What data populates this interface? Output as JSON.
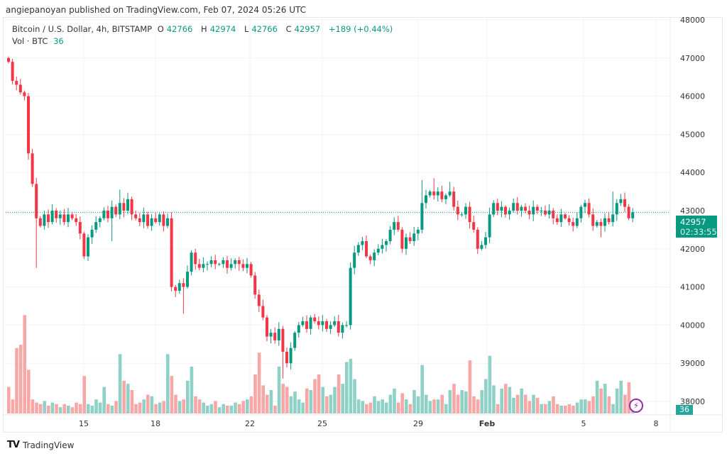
{
  "publish_line": "angiepanoyan published on TradingView.com, Feb 07, 2024 05:26 UTC",
  "legend": {
    "symbol": "Bitcoin / U.S. Dollar, 4h, BITSTAMP",
    "open_label": "O",
    "open": "42766",
    "high_label": "H",
    "high": "42974",
    "low_label": "L",
    "low": "42766",
    "close_label": "C",
    "close": "42957",
    "change": "+189 (+0.44%)",
    "vol_label": "Vol · BTC",
    "vol": "36"
  },
  "price_axis": [
    "48000",
    "47000",
    "46000",
    "45000",
    "44000",
    "43000",
    "42000",
    "41000",
    "40000",
    "39000",
    "38000"
  ],
  "time_axis": [
    {
      "label": "15",
      "bold": false
    },
    {
      "label": "18",
      "bold": false
    },
    {
      "label": "22",
      "bold": false
    },
    {
      "label": "25",
      "bold": false
    },
    {
      "label": "29",
      "bold": false
    },
    {
      "label": "Feb",
      "bold": true
    },
    {
      "label": "5",
      "bold": false
    },
    {
      "label": "8",
      "bold": false
    }
  ],
  "current_price": {
    "value": "42957",
    "countdown": "02:33:55",
    "price": 42957
  },
  "current_volume": "36",
  "colors": {
    "up": "#089981",
    "down": "#f23645",
    "vol_up": "#8fd1c6",
    "vol_down": "#f7a8a6",
    "grid": "#f0f3fa"
  },
  "footer": {
    "brand": "TradingView",
    "logo": "TV"
  },
  "chart_data": {
    "type": "candlestick",
    "interval": "4h",
    "ylim": [
      38000,
      48000
    ],
    "first_open": 47000,
    "close": [
      46900,
      46400,
      46300,
      46100,
      46000,
      44500,
      43700,
      42800,
      42600,
      42900,
      42700,
      43000,
      42800,
      42900,
      42700,
      42900,
      42800,
      42700,
      42400,
      41800,
      42300,
      42500,
      42700,
      42800,
      43000,
      42800,
      43100,
      42900,
      43200,
      43000,
      43300,
      42900,
      42800,
      42700,
      42900,
      42600,
      42800,
      42700,
      42900,
      42600,
      42800,
      41000,
      40900,
      41100,
      41000,
      41400,
      41900,
      41600,
      41500,
      41600,
      41600,
      41700,
      41600,
      41600,
      41700,
      41500,
      41600,
      41700,
      41600,
      41500,
      41600,
      41300,
      40800,
      40500,
      40200,
      39700,
      39800,
      39600,
      39900,
      39300,
      39000,
      39400,
      39800,
      40000,
      40100,
      39900,
      40200,
      40100,
      40000,
      40100,
      39900,
      40000,
      40100,
      39800,
      40000,
      40000,
      41500,
      41900,
      42100,
      42200,
      41800,
      41700,
      41900,
      42000,
      42100,
      42200,
      42500,
      42700,
      42500,
      42000,
      42300,
      42200,
      42400,
      42500,
      43200,
      43400,
      43500,
      43400,
      43500,
      43300,
      43400,
      43500,
      43100,
      42900,
      42900,
      43100,
      42700,
      42500,
      42000,
      42100,
      42300,
      42900,
      43200,
      43000,
      43100,
      42900,
      43000,
      43200,
      43000,
      43100,
      43000,
      42900,
      43100,
      43000,
      43000,
      42900,
      43000,
      42800,
      42700,
      42900,
      42800,
      42700,
      42600,
      42800,
      43100,
      43200,
      42900,
      42600,
      42700,
      42600,
      42800,
      42700,
      42900,
      43200,
      43300,
      43100,
      42800,
      42957
    ],
    "volume": [
      170,
      90,
      420,
      440,
      630,
      280,
      90,
      70,
      60,
      80,
      50,
      70,
      60,
      40,
      60,
      50,
      40,
      70,
      60,
      240,
      60,
      50,
      90,
      70,
      170,
      60,
      50,
      80,
      380,
      210,
      190,
      150,
      60,
      70,
      90,
      120,
      110,
      60,
      70,
      80,
      380,
      240,
      120,
      80,
      90,
      210,
      300,
      110,
      90,
      70,
      50,
      60,
      80,
      40,
      60,
      50,
      50,
      70,
      60,
      80,
      90,
      110,
      250,
      390,
      180,
      120,
      150,
      50,
      300,
      190,
      170,
      110,
      140,
      90,
      70,
      160,
      150,
      220,
      250,
      170,
      110,
      120,
      170,
      250,
      190,
      330,
      350,
      220,
      90,
      80,
      60,
      70,
      110,
      80,
      90,
      70,
      120,
      160,
      70,
      130,
      90,
      60,
      150,
      110,
      310,
      120,
      80,
      90,
      90,
      120,
      60,
      150,
      190,
      120,
      150,
      140,
      340,
      110,
      90,
      150,
      220,
      370,
      180,
      60,
      160,
      190,
      170,
      100,
      120,
      160,
      120,
      80,
      120,
      100,
      60,
      60,
      80,
      110,
      60,
      50,
      50,
      60,
      50,
      70,
      90,
      90,
      80,
      110,
      210,
      160,
      190,
      110,
      60,
      160,
      210,
      120,
      200,
      36
    ],
    "wick_extremes": [
      {
        "i": 7,
        "low": 41500
      },
      {
        "i": 26,
        "low": 42200
      },
      {
        "i": 28,
        "high": 43550
      },
      {
        "i": 44,
        "low": 40300
      },
      {
        "i": 69,
        "low": 38600
      },
      {
        "i": 104,
        "high": 43800
      },
      {
        "i": 107,
        "high": 43850
      },
      {
        "i": 111,
        "high": 43750
      },
      {
        "i": 152,
        "high": 43500
      },
      {
        "i": 149,
        "low": 42300
      }
    ]
  }
}
